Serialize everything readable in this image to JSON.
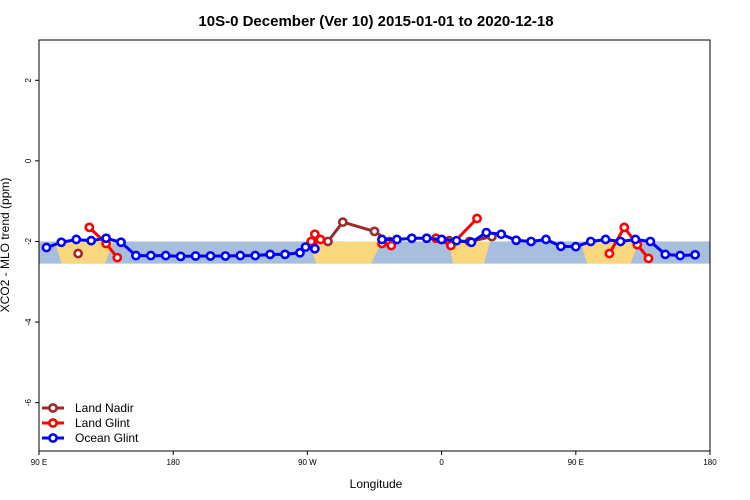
{
  "chart_data": {
    "type": "line",
    "title": "10S-0 December (Ver 10)   2015-01-01 to 2020-12-18",
    "xlabel": "Longitude",
    "ylabel": "XCO2 - MLO trend (ppm)",
    "xlim": [
      90,
      450
    ],
    "ylim": [
      -7.2,
      3.0
    ],
    "x_ticks": [
      {
        "value": 90,
        "label": "90 E"
      },
      {
        "value": 162,
        "label": "180"
      },
      {
        "value": 234,
        "label": "90 W"
      },
      {
        "value": 306,
        "label": "0"
      },
      {
        "value": 378,
        "label": "90 E"
      },
      {
        "value": 450,
        "label": "180"
      }
    ],
    "y_ticks": [
      {
        "value": 2,
        "label": "2"
      },
      {
        "value": 0,
        "label": "0"
      },
      {
        "value": -2,
        "label": "-2"
      },
      {
        "value": -4,
        "label": "-4"
      },
      {
        "value": -6,
        "label": "-6"
      }
    ],
    "band": {
      "y_min": -2.55,
      "y_max": -2.0,
      "ocean_color": "#a7bedd",
      "land_color": "#f9d77d"
    },
    "land_segments": [
      [
        99,
        130
      ],
      [
        235,
        274
      ],
      [
        310,
        332
      ],
      [
        381,
        412
      ]
    ],
    "legend": {
      "position": "bottom-left"
    },
    "series": [
      {
        "name": "Land Nadir",
        "color": "#9b2a2a",
        "x": [
          111,
          237,
          245,
          253,
          270,
          278,
          310,
          321,
          333
        ],
        "y": [
          -2.3,
          -2.0,
          -2.0,
          -1.52,
          -1.75,
          -2.0,
          -1.98,
          -2.0,
          -1.88
        ]
      },
      {
        "name": "Land Glint",
        "color": "#ff0000",
        "x": [
          117,
          126,
          132,
          236,
          238,
          241,
          274,
          279,
          303,
          311,
          325,
          396,
          404,
          411,
          417
        ],
        "y": [
          -1.65,
          -2.05,
          -2.4,
          -2.0,
          -1.82,
          -1.95,
          -2.05,
          -2.1,
          -1.92,
          -2.1,
          -1.43,
          -2.3,
          -1.65,
          -2.08,
          -2.42
        ]
      },
      {
        "name": "Ocean Glint",
        "color": "#0000ff",
        "x": [
          94,
          102,
          110,
          118,
          126,
          134,
          142,
          150,
          158,
          166,
          174,
          182,
          190,
          198,
          206,
          214,
          222,
          230,
          233,
          238,
          274,
          282,
          290,
          298,
          306,
          314,
          322,
          330,
          338,
          346,
          354,
          362,
          370,
          378,
          386,
          394,
          402,
          410,
          418,
          426,
          434,
          442
        ],
        "y": [
          -2.15,
          -2.02,
          -1.95,
          -1.98,
          -1.92,
          -2.02,
          -2.35,
          -2.35,
          -2.35,
          -2.37,
          -2.36,
          -2.36,
          -2.36,
          -2.35,
          -2.35,
          -2.32,
          -2.32,
          -2.28,
          -2.14,
          -2.18,
          -1.95,
          -1.95,
          -1.92,
          -1.92,
          -1.95,
          -1.98,
          -2.02,
          -1.78,
          -1.82,
          -1.97,
          -2.0,
          -1.95,
          -2.12,
          -2.13,
          -2.0,
          -1.95,
          -2.0,
          -1.95,
          -2.0,
          -2.32,
          -2.35,
          -2.33
        ]
      }
    ]
  }
}
